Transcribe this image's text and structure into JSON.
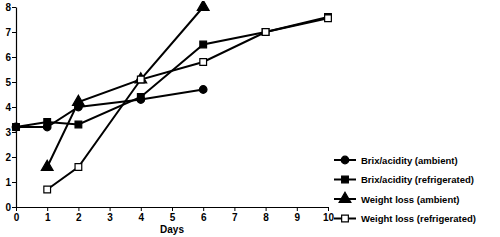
{
  "chart_data": {
    "type": "line",
    "x_label": "Days",
    "xlim": [
      0,
      10
    ],
    "xticks": [
      0,
      1,
      2,
      3,
      4,
      5,
      6,
      7,
      8,
      9,
      10
    ],
    "ylim": [
      0,
      8
    ],
    "yticks": [
      0,
      1,
      2,
      3,
      4,
      5,
      6,
      7,
      8
    ],
    "grid": false,
    "legend": "right",
    "series": [
      {
        "name": "Brix/acidity (ambient)",
        "color": "#000000",
        "marker": "circle",
        "line_style": "solid",
        "x": [
          0,
          1,
          2,
          4,
          6
        ],
        "values": [
          3.2,
          3.2,
          4.0,
          4.3,
          4.7
        ]
      },
      {
        "name": "Brix/acidity (refrigerated)",
        "color": "#000000",
        "marker": "square",
        "line_style": "solid",
        "x": [
          0,
          1,
          2,
          4,
          6,
          8,
          10
        ],
        "values": [
          3.2,
          3.4,
          3.3,
          4.4,
          6.5,
          7.0,
          7.6
        ]
      },
      {
        "name": "Weight loss (ambient)",
        "color": "#000000",
        "marker": "triangle",
        "line_style": "solid",
        "x": [
          1,
          2,
          4,
          6
        ],
        "values": [
          1.6,
          4.2,
          5.1,
          8.0
        ]
      },
      {
        "name": "Weight loss (refrigerated)",
        "color": "#000000",
        "marker": "open-square",
        "line_style": "solid",
        "x": [
          1,
          2,
          4,
          6,
          8,
          10
        ],
        "values": [
          0.7,
          1.6,
          5.1,
          5.8,
          7.0,
          7.55
        ]
      }
    ]
  }
}
